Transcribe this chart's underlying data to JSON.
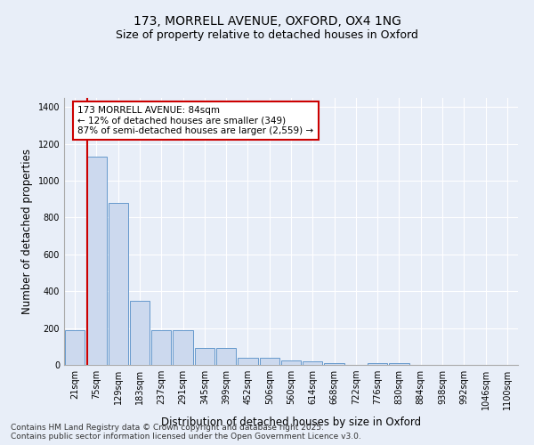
{
  "title_line1": "173, MORRELL AVENUE, OXFORD, OX4 1NG",
  "title_line2": "Size of property relative to detached houses in Oxford",
  "xlabel": "Distribution of detached houses by size in Oxford",
  "ylabel": "Number of detached properties",
  "categories": [
    "21sqm",
    "75sqm",
    "129sqm",
    "183sqm",
    "237sqm",
    "291sqm",
    "345sqm",
    "399sqm",
    "452sqm",
    "506sqm",
    "560sqm",
    "614sqm",
    "668sqm",
    "722sqm",
    "776sqm",
    "830sqm",
    "884sqm",
    "938sqm",
    "992sqm",
    "1046sqm",
    "1100sqm"
  ],
  "values": [
    190,
    1130,
    880,
    350,
    190,
    190,
    90,
    90,
    40,
    40,
    25,
    20,
    10,
    0,
    10,
    10,
    0,
    0,
    0,
    0,
    0
  ],
  "bar_color": "#ccd9ee",
  "bar_edge_color": "#6699cc",
  "property_line_x": 0.62,
  "property_line_color": "#cc0000",
  "annotation_text": "173 MORRELL AVENUE: 84sqm\n← 12% of detached houses are smaller (349)\n87% of semi-detached houses are larger (2,559) →",
  "annotation_box_facecolor": "#ffffff",
  "annotation_box_edgecolor": "#cc0000",
  "ylim": [
    0,
    1450
  ],
  "yticks": [
    0,
    200,
    400,
    600,
    800,
    1000,
    1200,
    1400
  ],
  "bg_color": "#e8eef8",
  "grid_color": "#ffffff",
  "title_fontsize": 10,
  "subtitle_fontsize": 9,
  "axis_label_fontsize": 8.5,
  "tick_fontsize": 7,
  "annotation_fontsize": 7.5,
  "footer_fontsize": 6.5,
  "footer_line1": "Contains HM Land Registry data © Crown copyright and database right 2025.",
  "footer_line2": "Contains public sector information licensed under the Open Government Licence v3.0."
}
